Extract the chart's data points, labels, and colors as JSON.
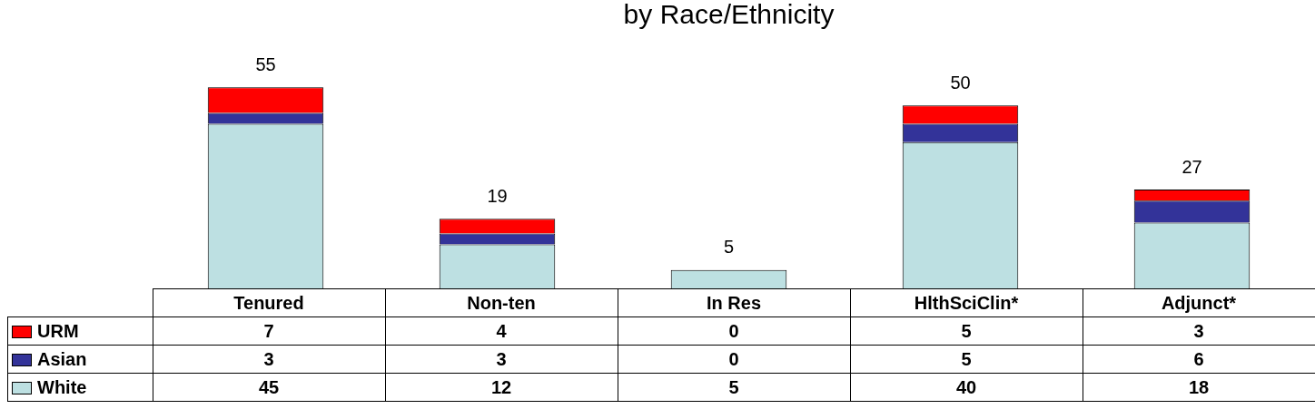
{
  "chart_data": {
    "type": "bar",
    "title": "by Race/Ethnicity",
    "categories": [
      "Tenured",
      "Non-ten",
      "In Res",
      "HlthSciClin*",
      "Adjunct*"
    ],
    "stacked": true,
    "tick_labels": "x",
    "legend": "bottom left",
    "data_labels": true,
    "grid": false,
    "series": [
      {
        "name": "White",
        "color": "#bde0e2",
        "values": [
          45,
          12,
          5,
          40,
          18
        ]
      },
      {
        "name": "Asian",
        "color": "#333399",
        "values": [
          3,
          3,
          0,
          5,
          6
        ]
      },
      {
        "name": "URM",
        "color": "#ff0000",
        "values": [
          7,
          4,
          0,
          5,
          3
        ]
      }
    ],
    "totals": [
      "55",
      "19",
      "5",
      "50",
      "27"
    ]
  }
}
